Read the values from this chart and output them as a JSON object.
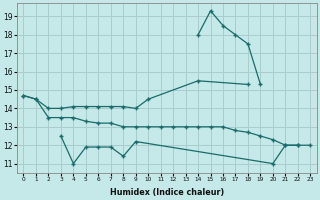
{
  "xlabel": "Humidex (Indice chaleur)",
  "background_color": "#c5e8e8",
  "grid_color": "#aacccc",
  "line_color": "#1a6b6b",
  "x": [
    0,
    1,
    2,
    3,
    4,
    5,
    6,
    7,
    8,
    9,
    10,
    11,
    12,
    13,
    14,
    15,
    16,
    17,
    18,
    19,
    20,
    21,
    22,
    23
  ],
  "line_top": [
    null,
    null,
    null,
    null,
    null,
    null,
    null,
    null,
    null,
    null,
    null,
    null,
    null,
    null,
    18.0,
    19.3,
    18.5,
    18.0,
    17.5,
    15.3,
    null,
    null,
    null,
    null
  ],
  "line_rise": [
    14.7,
    14.5,
    14.0,
    14.0,
    14.1,
    14.1,
    14.1,
    14.1,
    14.1,
    14.0,
    14.5,
    null,
    null,
    null,
    15.5,
    null,
    null,
    null,
    15.3,
    null,
    null,
    null,
    null,
    null
  ],
  "line_mid": [
    14.7,
    14.5,
    13.5,
    13.5,
    13.5,
    13.3,
    13.2,
    13.2,
    13.0,
    13.0,
    13.0,
    13.0,
    13.0,
    13.0,
    13.0,
    13.0,
    13.0,
    12.8,
    12.7,
    12.5,
    12.3,
    12.0,
    12.0,
    12.0
  ],
  "line_low": [
    null,
    null,
    null,
    12.5,
    11.0,
    11.9,
    11.9,
    11.9,
    11.4,
    12.2,
    null,
    null,
    null,
    null,
    null,
    null,
    null,
    null,
    null,
    null,
    11.0,
    12.0,
    12.0,
    null
  ],
  "ylim": [
    10.5,
    19.7
  ],
  "xlim": [
    -0.5,
    23.5
  ],
  "yticks": [
    11,
    12,
    13,
    14,
    15,
    16,
    17,
    18,
    19
  ],
  "xticks": [
    0,
    1,
    2,
    3,
    4,
    5,
    6,
    7,
    8,
    9,
    10,
    11,
    12,
    13,
    14,
    15,
    16,
    17,
    18,
    19,
    20,
    21,
    22,
    23
  ]
}
